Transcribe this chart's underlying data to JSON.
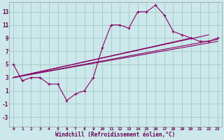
{
  "xlabel": "Windchill (Refroidissement éolien,°C)",
  "background_color": "#cce8ea",
  "grid_color": "#aacccc",
  "line_color": "#880066",
  "x_ticks": [
    0,
    1,
    2,
    3,
    4,
    5,
    6,
    7,
    8,
    9,
    10,
    11,
    12,
    13,
    14,
    15,
    16,
    17,
    18,
    19,
    20,
    21,
    22,
    23
  ],
  "y_ticks": [
    -3,
    -1,
    1,
    3,
    5,
    7,
    9,
    11,
    13
  ],
  "xlim": [
    -0.5,
    23.5
  ],
  "ylim": [
    -4.5,
    14.5
  ],
  "main_x": [
    0,
    1,
    2,
    3,
    4,
    5,
    6,
    7,
    8,
    9,
    10,
    11,
    12,
    13,
    14,
    15,
    16,
    17,
    18,
    19,
    20,
    21,
    22,
    23
  ],
  "main_y": [
    5.0,
    2.5,
    3.0,
    3.0,
    2.0,
    2.0,
    -0.5,
    0.5,
    1.0,
    3.0,
    7.5,
    11.0,
    11.0,
    10.5,
    13.0,
    13.0,
    14.0,
    12.5,
    10.0,
    9.5,
    9.0,
    8.5,
    8.5,
    9.0
  ],
  "line2": [
    [
      0,
      3.0
    ],
    [
      23,
      8.5
    ]
  ],
  "line3": [
    [
      0,
      3.0
    ],
    [
      23,
      8.8
    ]
  ],
  "line4": [
    [
      0,
      3.0
    ],
    [
      22,
      9.5
    ]
  ],
  "line5": [
    [
      0,
      3.0
    ],
    [
      20,
      9.0
    ]
  ]
}
